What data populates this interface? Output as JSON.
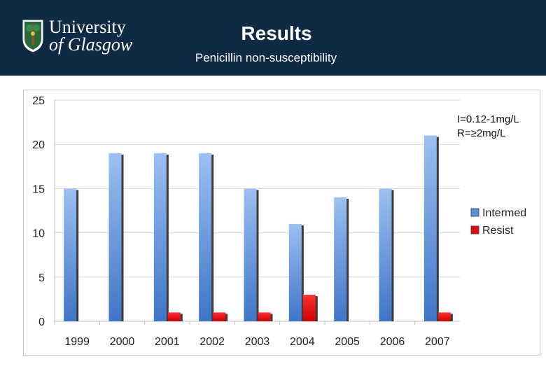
{
  "header": {
    "logo_line1": "University",
    "logo_line2": "of Glasgow",
    "title": "Results",
    "subtitle": "Penicillin non-susceptibility"
  },
  "annotation": {
    "line1": "I=0.12-1mg/L",
    "line2": "R=≥2mg/L"
  },
  "colors": {
    "header_bg": "#0f2a44",
    "intermed": "#5b8fd6",
    "resist": "#e01010"
  },
  "chart_data": {
    "type": "bar",
    "categories": [
      "1999",
      "2000",
      "2001",
      "2002",
      "2003",
      "2004",
      "2005",
      "2006",
      "2007"
    ],
    "series": [
      {
        "name": "Intermed",
        "values": [
          15,
          19,
          19,
          19,
          15,
          11,
          14,
          15,
          21
        ]
      },
      {
        "name": "Resist",
        "values": [
          0,
          0,
          1,
          1,
          1,
          3,
          0,
          0,
          1
        ]
      }
    ],
    "ylim": [
      0,
      25
    ],
    "yticks": [
      0,
      5,
      10,
      15,
      20,
      25
    ],
    "grid": true,
    "legend": "right"
  }
}
